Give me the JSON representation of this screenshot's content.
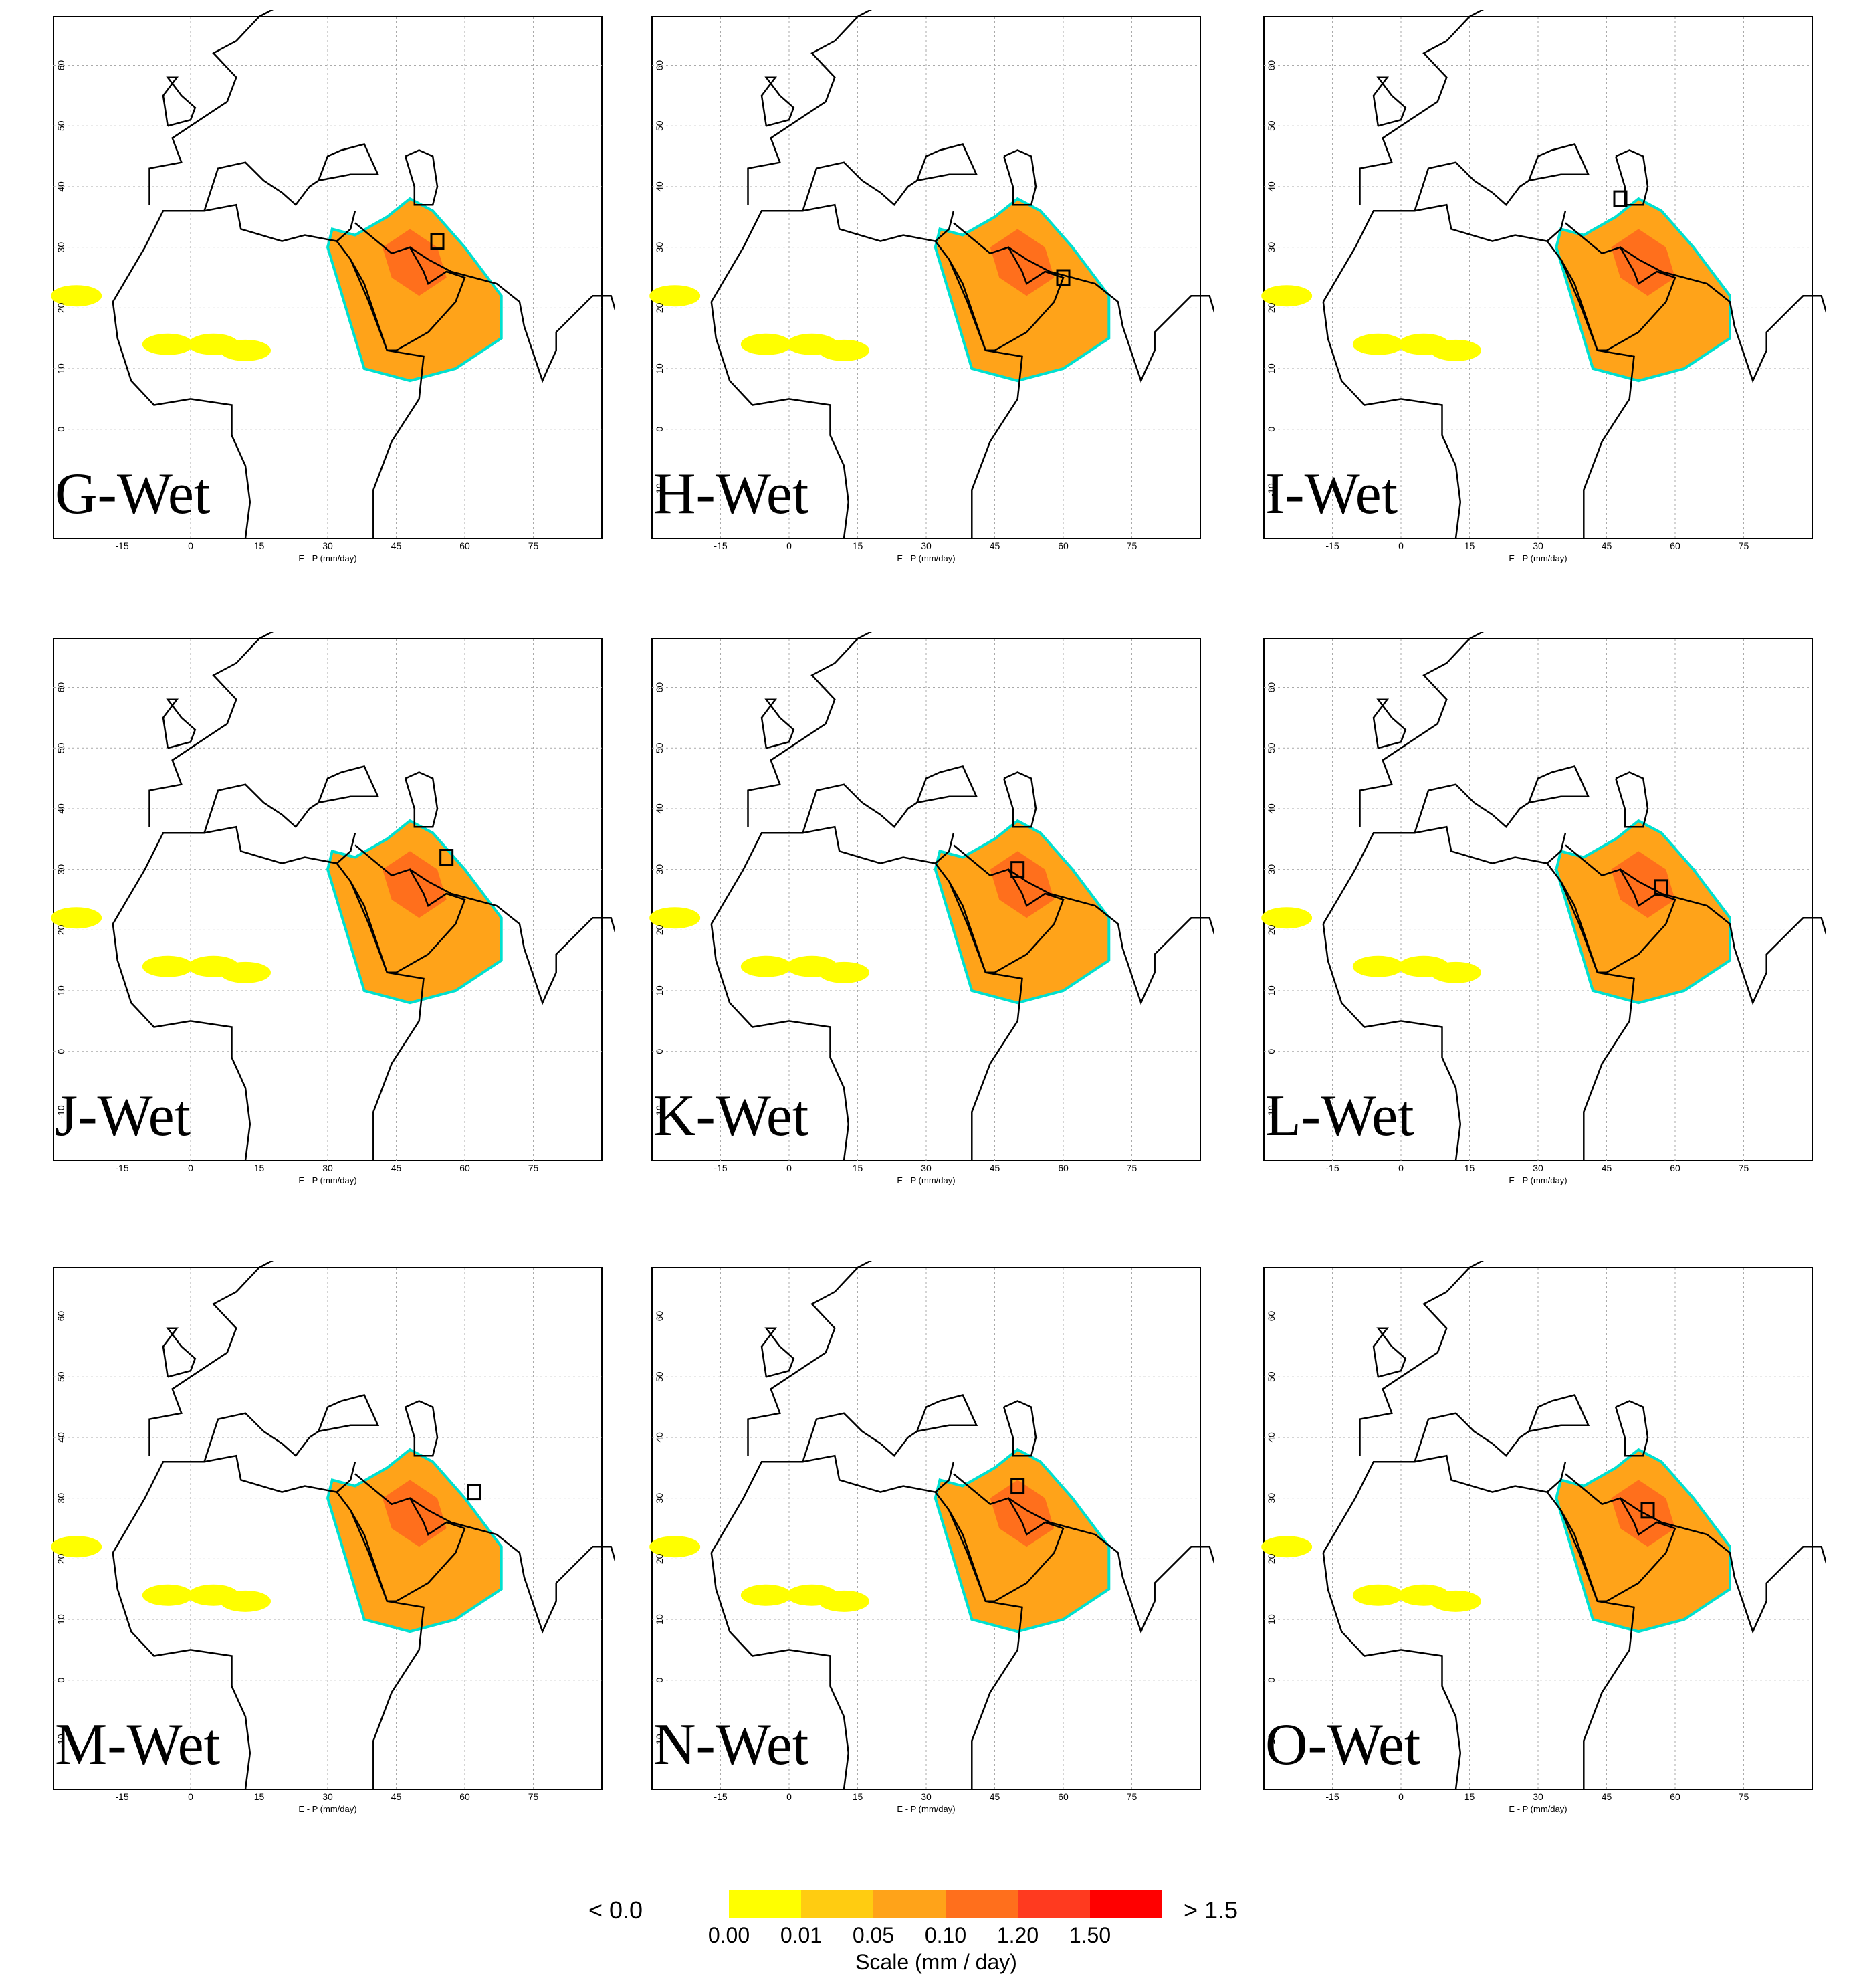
{
  "panels": [
    {
      "label": "G-Wet"
    },
    {
      "label": "H-Wet"
    },
    {
      "label": "I-Wet"
    },
    {
      "label": "J-Wet"
    },
    {
      "label": "K-Wet"
    },
    {
      "label": "L-Wet"
    },
    {
      "label": "M-Wet"
    },
    {
      "label": "N-Wet"
    },
    {
      "label": "O-Wet"
    }
  ],
  "axes": {
    "xlabel": "E - P (mm/day)",
    "xticks": [
      "-15",
      "0",
      "15",
      "30",
      "45",
      "60",
      "75"
    ],
    "yticks": [
      "-10",
      "0",
      "10",
      "20",
      "30",
      "40",
      "50",
      "60"
    ]
  },
  "legend": {
    "low": "< 0.0",
    "high": "> 1.5",
    "ticks": [
      "0.00",
      "0.01",
      "0.05",
      "0.10",
      "1.20",
      "1.50"
    ],
    "colors": [
      "#ffff00",
      "#ffcc11",
      "#ffa319",
      "#ff6f1c",
      "#ff3a1f",
      "#ff0000"
    ],
    "title": "Scale (mm / day)"
  },
  "colors": {
    "contour": "#00e0d0",
    "coast": "#000000"
  }
}
